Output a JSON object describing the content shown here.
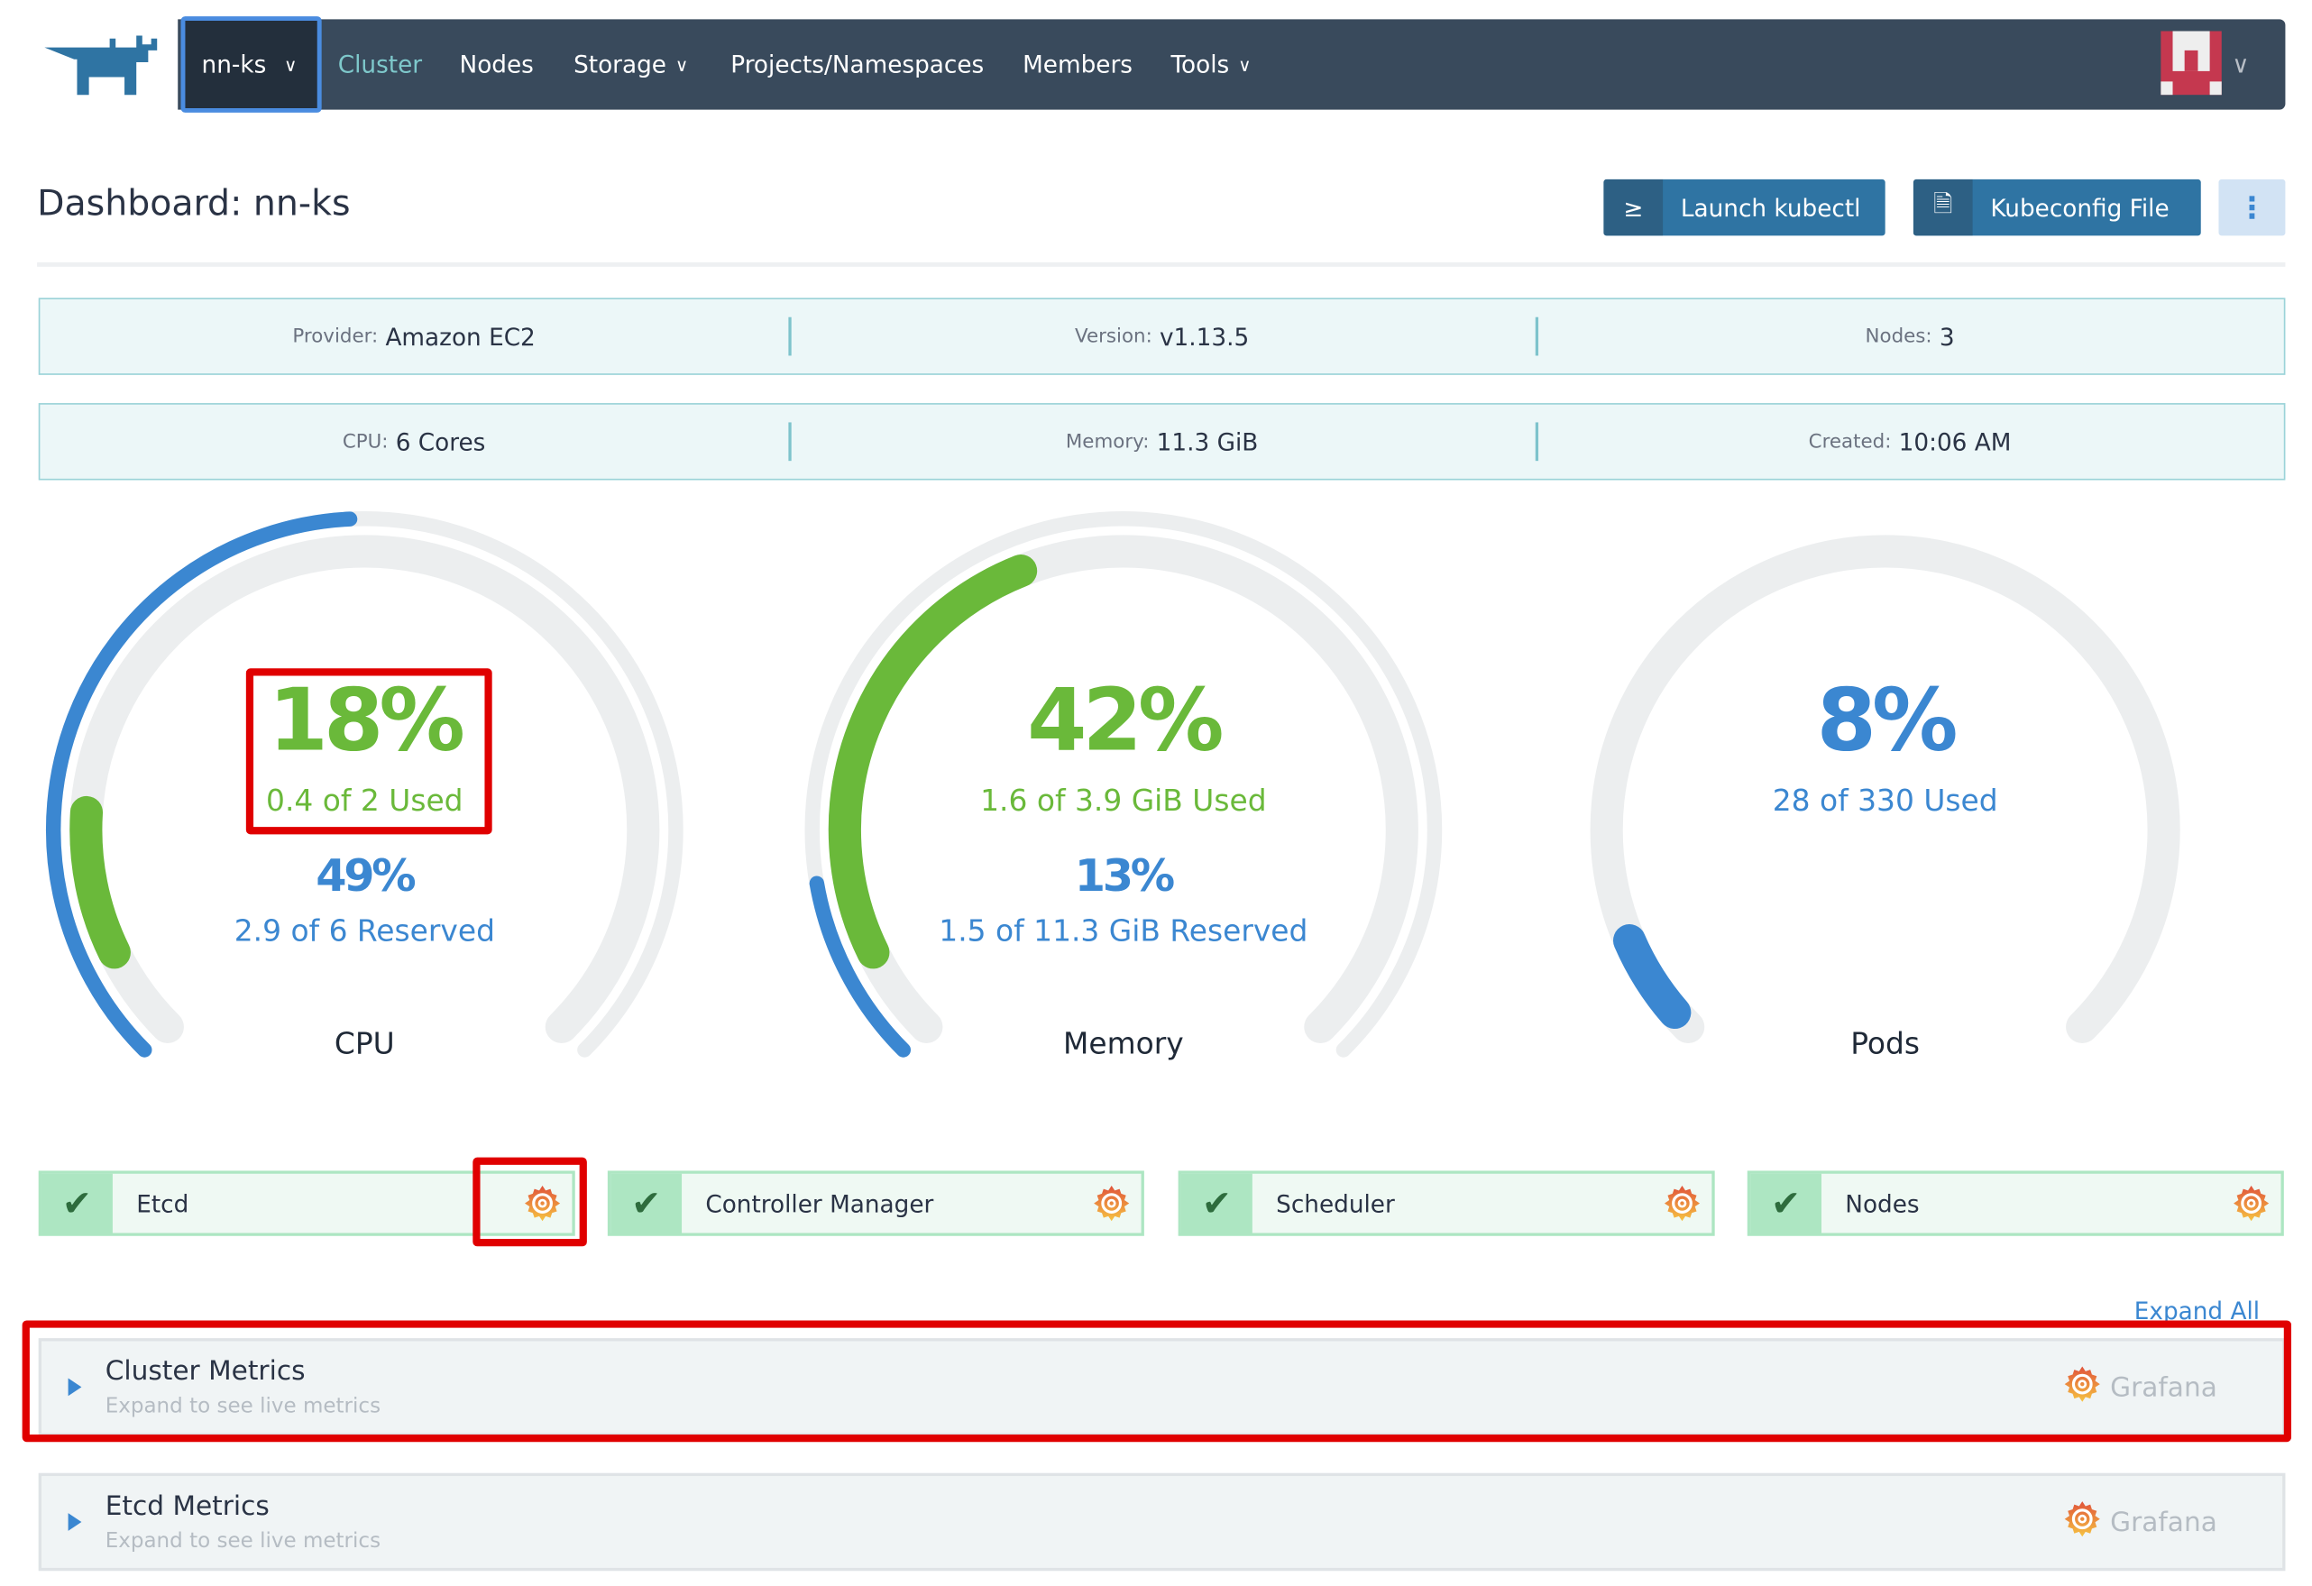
{
  "nav": {
    "cluster": "nn-ks",
    "items": [
      {
        "label": "Cluster",
        "active": true
      },
      {
        "label": "Nodes"
      },
      {
        "label": "Storage",
        "dropdown": true
      },
      {
        "label": "Projects/Namespaces"
      },
      {
        "label": "Members"
      },
      {
        "label": "Tools",
        "dropdown": true
      }
    ]
  },
  "header": {
    "title": "Dashboard: nn-ks",
    "launch_kubectl": "Launch kubectl",
    "kubeconfig": "Kubeconfig File",
    "kubectl_icon": "≥"
  },
  "info1": [
    {
      "k": "Provider:",
      "v": "Amazon EC2"
    },
    {
      "k": "Version:",
      "v": "v1.13.5"
    },
    {
      "k": "Nodes:",
      "v": "3"
    }
  ],
  "info2": [
    {
      "k": "CPU:",
      "v": "6 Cores"
    },
    {
      "k": "Memory:",
      "v": "11.3 GiB"
    },
    {
      "k": "Created:",
      "v": "10:06 AM"
    }
  ],
  "gauges": [
    {
      "label": "CPU",
      "used_pct": "18%",
      "used_text": "0.4 of 2 Used",
      "reserved_pct": "49%",
      "reserved_text": "2.9 of 6 Reserved",
      "used": 0.18,
      "reserved": 0.49
    },
    {
      "label": "Memory",
      "used_pct": "42%",
      "used_text": "1.6 of 3.9 GiB Used",
      "reserved_pct": "13%",
      "reserved_text": "1.5 of 11.3 GiB Reserved",
      "used": 0.42,
      "reserved": 0.13
    },
    {
      "label": "Pods",
      "used_pct": "8%",
      "used_text": "28 of 330 Used",
      "used": 0.08
    }
  ],
  "components": [
    {
      "name": "Etcd",
      "status": "healthy"
    },
    {
      "name": "Controller Manager",
      "status": "healthy"
    },
    {
      "name": "Scheduler",
      "status": "healthy"
    },
    {
      "name": "Nodes",
      "status": "healthy"
    }
  ],
  "expand_all": "Expand All",
  "metrics": [
    {
      "title": "Cluster Metrics",
      "subtitle": "Expand to see live metrics",
      "grafana": "Grafana"
    },
    {
      "title": "Etcd Metrics",
      "subtitle": "Expand to see live metrics",
      "grafana": "Grafana"
    }
  ],
  "colors": {
    "used": "#6ab93a",
    "reserved": "#3b87d1",
    "track": "#eceeef",
    "nav": "#394a5c"
  }
}
